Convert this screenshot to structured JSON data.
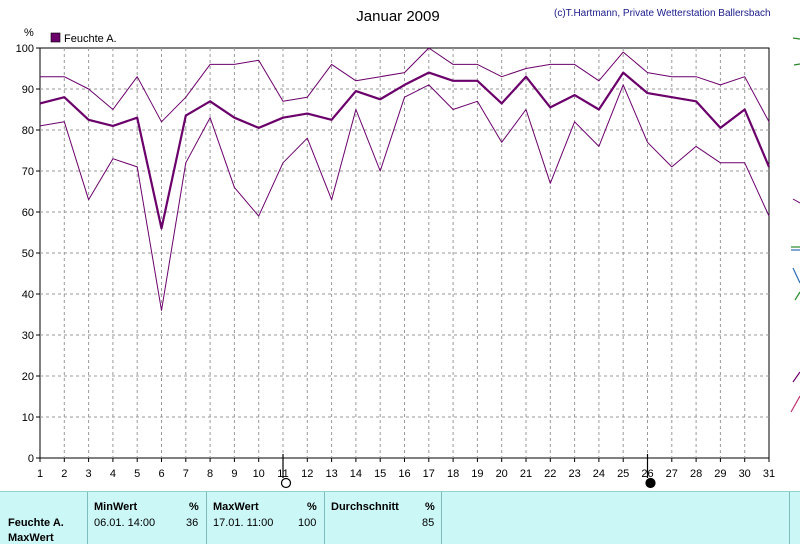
{
  "header": {
    "title": "Januar 2009",
    "credit": "(c)T.Hartmann, Private Wetterstation Ballersbach"
  },
  "chart_data": {
    "type": "line",
    "title": "Januar 2009",
    "ylabel": "%",
    "ylim": [
      0,
      100
    ],
    "yticks": [
      0,
      10,
      20,
      30,
      40,
      50,
      60,
      70,
      80,
      90,
      100
    ],
    "x": [
      1,
      2,
      3,
      4,
      5,
      6,
      7,
      8,
      9,
      10,
      11,
      12,
      13,
      14,
      15,
      16,
      17,
      18,
      19,
      20,
      21,
      22,
      23,
      24,
      25,
      26,
      27,
      28,
      29,
      30,
      31
    ],
    "legend": [
      "Feuchte A."
    ],
    "legend_position": "top-left",
    "grid": true,
    "colors": {
      "series": "#6b006b",
      "grid": "#999999"
    },
    "series": [
      {
        "name": "Feuchte A.",
        "role": "max",
        "values": [
          93,
          93,
          90,
          85,
          93,
          82,
          88,
          96,
          96,
          97,
          87,
          88,
          96,
          92,
          93,
          94,
          100,
          96,
          96,
          93,
          95,
          96,
          96,
          92,
          99,
          94,
          93,
          93,
          91,
          93,
          82
        ]
      },
      {
        "name": "Feuchte A.",
        "role": "avg",
        "values": [
          86.5,
          88,
          82.5,
          81,
          83,
          56,
          83.5,
          87,
          83,
          80.5,
          83,
          84,
          82.5,
          89.5,
          87.5,
          91,
          94,
          92,
          92,
          86.5,
          93,
          85.5,
          88.5,
          85,
          94,
          89,
          88,
          87,
          80.5,
          85,
          71
        ]
      },
      {
        "name": "Feuchte A.",
        "role": "min",
        "values": [
          81,
          82,
          63,
          73,
          71,
          36,
          72,
          83,
          66,
          59,
          72,
          78,
          63,
          85,
          70,
          88,
          91,
          85,
          87,
          77,
          85,
          67,
          82,
          76,
          91,
          77,
          71,
          76,
          72,
          72,
          59
        ]
      }
    ],
    "moon_phases": [
      {
        "day": 11,
        "phase": "full"
      },
      {
        "day": 26,
        "phase": "new"
      }
    ]
  },
  "stats": {
    "row_label": "Feuchte A.",
    "row_label_2": "MaxWert",
    "min": {
      "header": "MinWert",
      "unit": "%",
      "time": "06.01. 14:00",
      "value": "36"
    },
    "max": {
      "header": "MaxWert",
      "unit": "%",
      "time": "17.01. 11:00",
      "value": "100"
    },
    "avg": {
      "header": "Durchschnitt",
      "unit": "%",
      "value": "85"
    }
  }
}
